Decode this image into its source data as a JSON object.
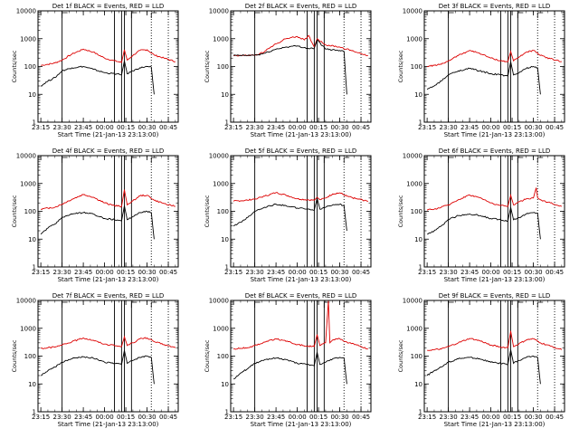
{
  "x_ticks": [
    "23:15",
    "23:30",
    "23:45",
    "00:00",
    "00:15",
    "00:30",
    "00:45"
  ],
  "y_ticks": [
    "1",
    "10",
    "100",
    "1000",
    "10000"
  ],
  "x_label": "Start Time (21-Jan-13 23:13:00)",
  "y_label": "Counts/sec",
  "colors": {
    "events": "#000000",
    "lld": "#dd0000",
    "frame": "#000000"
  },
  "chart_data": [
    {
      "type": "line",
      "title": "Det 1f BLACK = Events, RED = LLD",
      "xlim": [
        "23:13",
        "00:52"
      ],
      "ylim": [
        1,
        10000
      ],
      "yscale": "log",
      "series": [
        {
          "x": [
            "23:15",
            "23:20",
            "23:25",
            "23:30",
            "23:37",
            "23:45",
            "23:52",
            "00:00",
            "00:07",
            "00:12",
            "00:14",
            "00:16",
            "00:20",
            "00:25",
            "00:30",
            "00:35",
            "00:42",
            "00:50"
          ],
          "values": [
            110,
            120,
            135,
            170,
            280,
            420,
            330,
            200,
            160,
            140,
            400,
            170,
            250,
            380,
            400,
            260,
            200,
            150
          ]
        },
        {
          "x": [
            "23:15",
            "23:20",
            "23:25",
            "23:30",
            "23:37",
            "23:45",
            "23:52",
            "00:00",
            "00:07",
            "00:12",
            "00:14",
            "00:16",
            "00:20",
            "00:25",
            "00:30",
            "00:33",
            "00:35"
          ],
          "values": [
            20,
            30,
            40,
            70,
            90,
            100,
            80,
            60,
            55,
            50,
            160,
            55,
            70,
            90,
            100,
            95,
            10
          ]
        }
      ]
    },
    {
      "type": "line",
      "title": "Det 2f BLACK = Events, RED = LLD",
      "xlim": [
        "23:13",
        "00:52"
      ],
      "ylim": [
        1,
        10000
      ],
      "yscale": "log",
      "series": [
        {
          "x": [
            "23:15",
            "23:25",
            "23:32",
            "23:37",
            "23:45",
            "23:52",
            "00:00",
            "00:05",
            "00:08",
            "00:12",
            "00:14",
            "00:20",
            "00:30",
            "00:40",
            "00:50"
          ],
          "values": [
            250,
            250,
            260,
            350,
            650,
            1000,
            1200,
            900,
            1300,
            500,
            1000,
            600,
            500,
            350,
            250
          ]
        },
        {
          "x": [
            "23:15",
            "23:25",
            "23:32",
            "23:37",
            "23:45",
            "23:52",
            "00:00",
            "00:07",
            "00:12",
            "00:14",
            "00:20",
            "00:30",
            "00:33",
            "00:35"
          ],
          "values": [
            250,
            250,
            260,
            300,
            420,
            500,
            550,
            450,
            450,
            900,
            420,
            380,
            350,
            10
          ]
        }
      ]
    },
    {
      "type": "line",
      "title": "Det 3f BLACK = Events, RED = LLD",
      "xlim": [
        "23:13",
        "00:52"
      ],
      "ylim": [
        1,
        10000
      ],
      "yscale": "log",
      "series": [
        {
          "x": [
            "23:15",
            "23:20",
            "23:25",
            "23:30",
            "23:37",
            "23:45",
            "23:52",
            "00:00",
            "00:07",
            "00:12",
            "00:14",
            "00:16",
            "00:20",
            "00:25",
            "00:30",
            "00:35",
            "00:42",
            "00:50"
          ],
          "values": [
            100,
            110,
            120,
            160,
            250,
            380,
            300,
            200,
            160,
            150,
            350,
            160,
            220,
            330,
            380,
            250,
            190,
            150
          ]
        },
        {
          "x": [
            "23:15",
            "23:20",
            "23:25",
            "23:30",
            "23:37",
            "23:45",
            "23:52",
            "00:00",
            "00:07",
            "00:12",
            "00:14",
            "00:16",
            "00:20",
            "00:25",
            "00:30",
            "00:33",
            "00:35"
          ],
          "values": [
            15,
            20,
            30,
            50,
            70,
            85,
            70,
            55,
            50,
            45,
            150,
            50,
            60,
            85,
            100,
            90,
            10
          ]
        }
      ]
    },
    {
      "type": "line",
      "title": "Det 4f BLACK = Events, RED = LLD",
      "xlim": [
        "23:13",
        "00:52"
      ],
      "ylim": [
        1,
        10000
      ],
      "yscale": "log",
      "series": [
        {
          "x": [
            "23:15",
            "23:20",
            "23:25",
            "23:30",
            "23:37",
            "23:45",
            "23:52",
            "00:00",
            "00:07",
            "00:12",
            "00:14",
            "00:16",
            "00:20",
            "00:25",
            "00:30",
            "00:35",
            "00:42",
            "00:50"
          ],
          "values": [
            120,
            130,
            140,
            180,
            270,
            400,
            320,
            200,
            160,
            150,
            600,
            170,
            240,
            360,
            380,
            250,
            190,
            150
          ]
        },
        {
          "x": [
            "23:15",
            "23:20",
            "23:25",
            "23:30",
            "23:37",
            "23:45",
            "23:52",
            "00:00",
            "00:07",
            "00:12",
            "00:14",
            "00:16",
            "00:20",
            "00:25",
            "00:30",
            "00:33",
            "00:35"
          ],
          "values": [
            15,
            25,
            35,
            60,
            80,
            90,
            80,
            55,
            50,
            45,
            160,
            50,
            65,
            90,
            100,
            90,
            10
          ]
        }
      ]
    },
    {
      "type": "line",
      "title": "Det 5f BLACK = Events, RED = LLD",
      "xlim": [
        "23:13",
        "00:52"
      ],
      "ylim": [
        1,
        10000
      ],
      "yscale": "log",
      "series": [
        {
          "x": [
            "23:15",
            "23:20",
            "23:25",
            "23:30",
            "23:37",
            "23:45",
            "23:52",
            "00:00",
            "00:07",
            "00:12",
            "00:14",
            "00:16",
            "00:20",
            "00:25",
            "00:30",
            "00:35",
            "00:42",
            "00:50"
          ],
          "values": [
            230,
            240,
            250,
            280,
            350,
            470,
            380,
            280,
            260,
            250,
            320,
            260,
            300,
            420,
            460,
            350,
            280,
            230
          ]
        },
        {
          "x": [
            "23:15",
            "23:20",
            "23:25",
            "23:30",
            "23:37",
            "23:45",
            "23:52",
            "00:00",
            "00:07",
            "00:12",
            "00:14",
            "00:16",
            "00:20",
            "00:25",
            "00:30",
            "00:33",
            "00:35"
          ],
          "values": [
            30,
            40,
            60,
            100,
            140,
            180,
            160,
            130,
            120,
            110,
            300,
            120,
            140,
            170,
            180,
            160,
            20
          ]
        }
      ]
    },
    {
      "type": "line",
      "title": "Det 6f BLACK = Events, RED = LLD",
      "xlim": [
        "23:13",
        "00:52"
      ],
      "ylim": [
        1,
        10000
      ],
      "yscale": "log",
      "series": [
        {
          "x": [
            "23:15",
            "23:20",
            "23:25",
            "23:30",
            "23:37",
            "23:45",
            "23:52",
            "00:00",
            "00:07",
            "00:12",
            "00:14",
            "00:16",
            "00:20",
            "00:25",
            "00:30",
            "00:32",
            "00:33",
            "00:35",
            "00:42",
            "00:50"
          ],
          "values": [
            110,
            120,
            140,
            170,
            260,
            390,
            310,
            200,
            160,
            150,
            380,
            170,
            220,
            280,
            300,
            700,
            300,
            260,
            200,
            150
          ]
        },
        {
          "x": [
            "23:15",
            "23:20",
            "23:25",
            "23:30",
            "23:37",
            "23:45",
            "23:52",
            "00:00",
            "00:07",
            "00:12",
            "00:14",
            "00:16",
            "00:20",
            "00:25",
            "00:30",
            "00:33",
            "00:35"
          ],
          "values": [
            15,
            20,
            30,
            50,
            70,
            80,
            70,
            55,
            50,
            45,
            140,
            50,
            60,
            80,
            90,
            85,
            10
          ]
        }
      ]
    },
    {
      "type": "line",
      "title": "Det 7f BLACK = Events, RED = LLD",
      "xlim": [
        "23:13",
        "00:52"
      ],
      "ylim": [
        1,
        10000
      ],
      "yscale": "log",
      "series": [
        {
          "x": [
            "23:15",
            "23:20",
            "23:25",
            "23:30",
            "23:37",
            "23:45",
            "23:52",
            "00:00",
            "00:07",
            "00:12",
            "00:14",
            "00:16",
            "00:20",
            "00:25",
            "00:30",
            "00:35",
            "00:42",
            "00:50"
          ],
          "values": [
            190,
            200,
            210,
            250,
            330,
            450,
            370,
            270,
            240,
            220,
            500,
            240,
            300,
            420,
            450,
            330,
            260,
            200
          ]
        },
        {
          "x": [
            "23:15",
            "23:20",
            "23:25",
            "23:30",
            "23:37",
            "23:45",
            "23:52",
            "00:00",
            "00:07",
            "00:12",
            "00:14",
            "00:16",
            "00:20",
            "00:25",
            "00:30",
            "00:33",
            "00:35"
          ],
          "values": [
            20,
            30,
            40,
            60,
            80,
            95,
            85,
            60,
            55,
            50,
            160,
            55,
            70,
            90,
            100,
            90,
            10
          ]
        }
      ]
    },
    {
      "type": "line",
      "title": "Det 8f BLACK = Events, RED = LLD",
      "xlim": [
        "23:13",
        "00:52"
      ],
      "ylim": [
        1,
        10000
      ],
      "yscale": "log",
      "series": [
        {
          "x": [
            "23:15",
            "23:20",
            "23:25",
            "23:30",
            "23:37",
            "23:45",
            "23:52",
            "00:00",
            "00:07",
            "00:12",
            "00:14",
            "00:16",
            "00:20",
            "00:22",
            "00:23",
            "00:25",
            "00:30",
            "00:35",
            "00:42",
            "00:50"
          ],
          "values": [
            180,
            190,
            200,
            240,
            320,
            420,
            340,
            260,
            230,
            220,
            600,
            240,
            300,
            10000,
            300,
            380,
            420,
            320,
            250,
            180
          ]
        },
        {
          "x": [
            "23:15",
            "23:20",
            "23:25",
            "23:30",
            "23:37",
            "23:45",
            "23:52",
            "00:00",
            "00:07",
            "00:12",
            "00:14",
            "00:16",
            "00:20",
            "00:25",
            "00:30",
            "00:33",
            "00:35"
          ],
          "values": [
            15,
            25,
            35,
            55,
            75,
            85,
            75,
            55,
            50,
            45,
            140,
            50,
            60,
            80,
            90,
            85,
            10
          ]
        }
      ]
    },
    {
      "type": "line",
      "title": "Det 9f BLACK = Events, RED = LLD",
      "xlim": [
        "23:13",
        "00:52"
      ],
      "ylim": [
        1,
        10000
      ],
      "yscale": "log",
      "series": [
        {
          "x": [
            "23:15",
            "23:20",
            "23:25",
            "23:30",
            "23:37",
            "23:45",
            "23:52",
            "00:00",
            "00:07",
            "00:12",
            "00:14",
            "00:16",
            "00:20",
            "00:25",
            "00:30",
            "00:35",
            "00:42",
            "00:50"
          ],
          "values": [
            160,
            170,
            180,
            220,
            300,
            430,
            360,
            250,
            210,
            200,
            800,
            220,
            280,
            380,
            420,
            300,
            230,
            170
          ]
        },
        {
          "x": [
            "23:15",
            "23:20",
            "23:25",
            "23:30",
            "23:37",
            "23:45",
            "23:52",
            "00:00",
            "00:07",
            "00:12",
            "00:14",
            "00:16",
            "00:20",
            "00:25",
            "00:30",
            "00:33",
            "00:35"
          ],
          "values": [
            20,
            30,
            40,
            60,
            80,
            90,
            80,
            60,
            55,
            50,
            170,
            55,
            70,
            90,
            100,
            90,
            10
          ]
        }
      ]
    }
  ],
  "vertical_markers": {
    "solid": [
      "23:30",
      "00:07",
      "00:12",
      "00:14",
      "00:19"
    ],
    "dotted": [
      "00:33",
      "00:45"
    ],
    "flags": [
      "23:30",
      "00:19",
      "00:33"
    ]
  }
}
